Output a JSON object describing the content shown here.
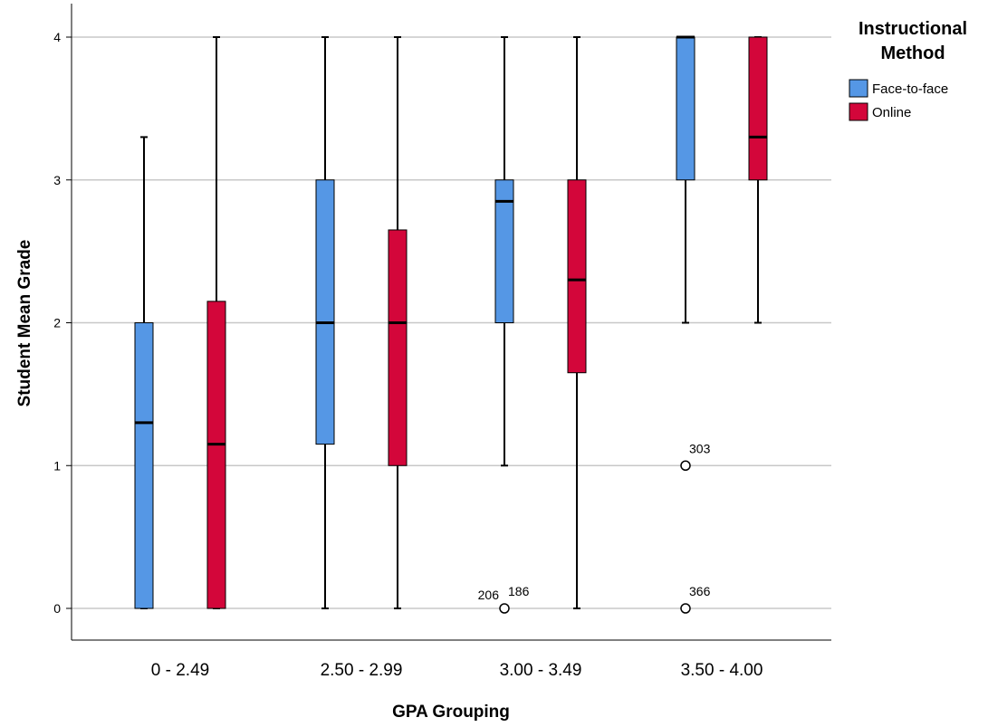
{
  "chart_data": {
    "type": "boxplot",
    "xlabel": "GPA Grouping",
    "ylabel": "Student Mean Grade",
    "ylim": [
      0,
      4
    ],
    "yticks": [
      "0",
      "1",
      "2",
      "3",
      "4"
    ],
    "categories": [
      "0 - 2.49",
      "2.50 - 2.99",
      "3.00 - 3.49",
      "3.50 - 4.00"
    ],
    "grid": "horizontal",
    "legend": {
      "title_line1": "Instructional",
      "title_line2": "Method",
      "placement": "right"
    },
    "series": [
      {
        "name": "Face-to-face",
        "color": "#5597e5",
        "boxes": [
          {
            "min": 0,
            "q1": 0,
            "median": 1.3,
            "q3": 2.0,
            "max": 3.3
          },
          {
            "min": 0,
            "q1": 1.15,
            "median": 2.0,
            "q3": 3.0,
            "max": 4.0
          },
          {
            "min": 1.0,
            "q1": 2.0,
            "median": 2.85,
            "q3": 3.0,
            "max": 4.0
          },
          {
            "min": 2.0,
            "q1": 3.0,
            "median": 4.0,
            "q3": 4.0,
            "max": 4.0
          }
        ]
      },
      {
        "name": "Online",
        "color": "#d3063a",
        "boxes": [
          {
            "min": 0,
            "q1": 0,
            "median": 1.15,
            "q3": 2.15,
            "max": 4.0
          },
          {
            "min": 0,
            "q1": 1.0,
            "median": 2.0,
            "q3": 2.65,
            "max": 4.0
          },
          {
            "min": 0,
            "q1": 1.65,
            "median": 2.3,
            "q3": 3.0,
            "max": 4.0
          },
          {
            "min": 2.0,
            "q1": 3.0,
            "median": 3.3,
            "q3": 4.0,
            "max": 4.0
          }
        ]
      }
    ],
    "outliers": [
      {
        "category_index": 2,
        "series_index": 0,
        "value": 0,
        "labels": [
          "206",
          "186"
        ]
      },
      {
        "category_index": 3,
        "series_index": 0,
        "value": 1,
        "labels": [
          "303"
        ]
      },
      {
        "category_index": 3,
        "series_index": 0,
        "value": 0,
        "labels": [
          "366"
        ]
      }
    ]
  }
}
